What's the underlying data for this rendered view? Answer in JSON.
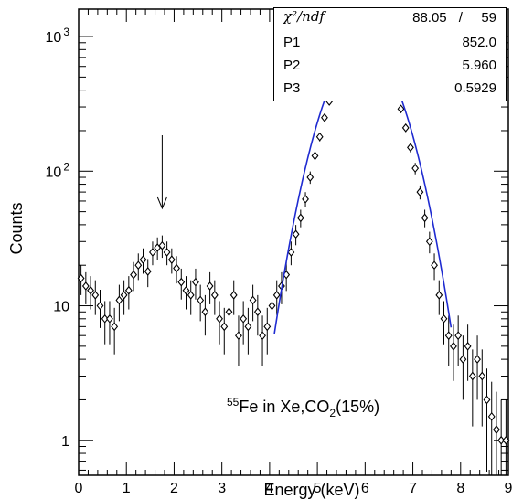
{
  "chart_data": {
    "type": "scatter",
    "xlabel": "Energy (keV)",
    "ylabel": "Counts",
    "xlim": [
      0,
      9
    ],
    "ylim": [
      0.55,
      1600
    ],
    "yscale": "log",
    "x_ticks": [
      "0",
      "1",
      "2",
      "3",
      "4",
      "5",
      "6",
      "7",
      "8",
      "9"
    ],
    "y_ticks": [
      {
        "value": 1,
        "base": "1",
        "exp": ""
      },
      {
        "value": 10,
        "base": "10",
        "exp": ""
      },
      {
        "value": 100,
        "base": "10",
        "exp": "2"
      },
      {
        "value": 1000,
        "base": "10",
        "exp": "3"
      }
    ],
    "annotation": {
      "pre": "55",
      "main": "Fe in Xe,CO",
      "sub": "2",
      "post": "(15%)"
    },
    "arrow_x": 1.75,
    "fit": {
      "type": "gaussian",
      "amplitude": 852.0,
      "mean": 5.96,
      "sigma": 0.5929,
      "x_range": [
        4.1,
        7.8
      ],
      "color": "#1f2bd1"
    },
    "stats": {
      "chi_label": "χ²/ndf",
      "chi_value": "88.05",
      "chi_sep": "/",
      "ndf": "59",
      "params": [
        {
          "name": "P1",
          "value": "852.0"
        },
        {
          "name": "P2",
          "value": "5.960"
        },
        {
          "name": "P3",
          "value": "0.5929"
        }
      ]
    },
    "series": [
      {
        "x": [
          0.05,
          0.15,
          0.25,
          0.35,
          0.45,
          0.55,
          0.65,
          0.75,
          0.85,
          0.95,
          1.05,
          1.15,
          1.25,
          1.35,
          1.45,
          1.55,
          1.65,
          1.75,
          1.85,
          1.95,
          2.05,
          2.15,
          2.25,
          2.35,
          2.45,
          2.55,
          2.65,
          2.75,
          2.85,
          2.95,
          3.05,
          3.15,
          3.25,
          3.35,
          3.45,
          3.55,
          3.65,
          3.75,
          3.85,
          3.95,
          4.05,
          4.15,
          4.25,
          4.35,
          4.45,
          4.55,
          4.65,
          4.75,
          4.85,
          4.95,
          5.05,
          5.15,
          5.25,
          5.35,
          5.45,
          5.55,
          5.65,
          5.75,
          5.85,
          5.95,
          6.05,
          6.15,
          6.25,
          6.35,
          6.45,
          6.55,
          6.65,
          6.75,
          6.85,
          6.95,
          7.05,
          7.15,
          7.25,
          7.35,
          7.45,
          7.55,
          7.65,
          7.75,
          7.85,
          7.95,
          8.05,
          8.15,
          8.25,
          8.35,
          8.45,
          8.55,
          8.65,
          8.75,
          8.85,
          8.95
        ],
        "y": [
          16,
          14,
          13,
          12,
          10,
          8,
          8,
          7,
          11,
          12,
          13,
          17,
          20,
          22,
          18,
          25,
          27,
          28,
          25,
          22,
          19,
          15,
          13,
          12,
          15,
          11,
          9,
          14,
          12,
          8,
          7,
          9,
          12,
          6,
          8,
          7,
          11,
          9,
          6,
          7,
          10,
          12,
          14,
          17,
          25,
          34,
          45,
          62,
          90,
          130,
          180,
          250,
          330,
          420,
          520,
          620,
          700,
          760,
          820,
          845,
          845,
          810,
          760,
          690,
          590,
          480,
          380,
          290,
          210,
          150,
          105,
          70,
          45,
          30,
          20,
          12,
          8,
          6,
          5,
          6,
          4,
          5,
          3,
          4,
          3,
          2,
          1.5,
          1.2,
          1,
          1
        ]
      }
    ]
  }
}
